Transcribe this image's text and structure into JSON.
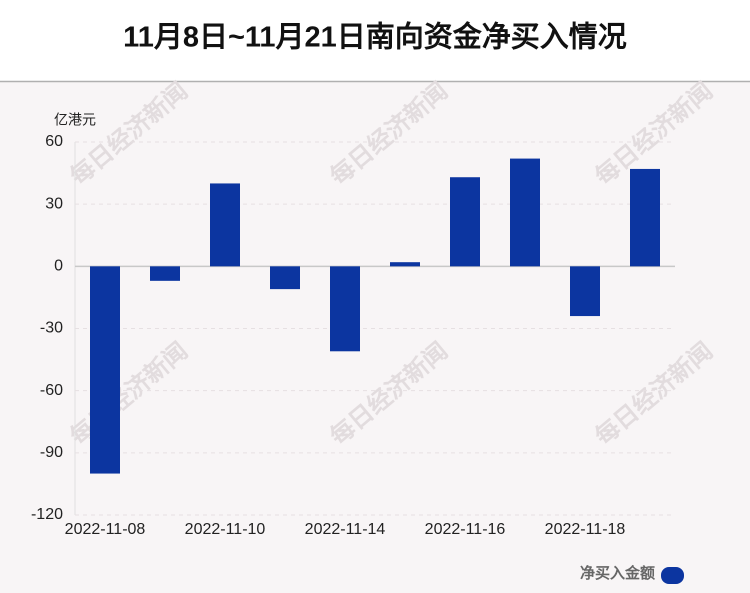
{
  "chart_data": {
    "type": "bar",
    "title": "11月8日~11月21日南向资金净买入情况",
    "y_axis_label": "亿港元",
    "watermark": "每日经济新闻",
    "categories": [
      "2022-11-08",
      null,
      "2022-11-10",
      null,
      "2022-11-14",
      null,
      "2022-11-16",
      null,
      "2022-11-18",
      null
    ],
    "series": [
      {
        "name": "净买入金额",
        "color": "#0c35a0",
        "values": [
          -100,
          -7,
          40,
          -11,
          -41,
          2,
          43,
          52,
          -24,
          47
        ]
      }
    ],
    "ylim": [
      -120,
      60
    ],
    "yticks": [
      -120,
      -90,
      -60,
      -30,
      0,
      30,
      60
    ],
    "grid": true,
    "legend": "bottom-right"
  }
}
